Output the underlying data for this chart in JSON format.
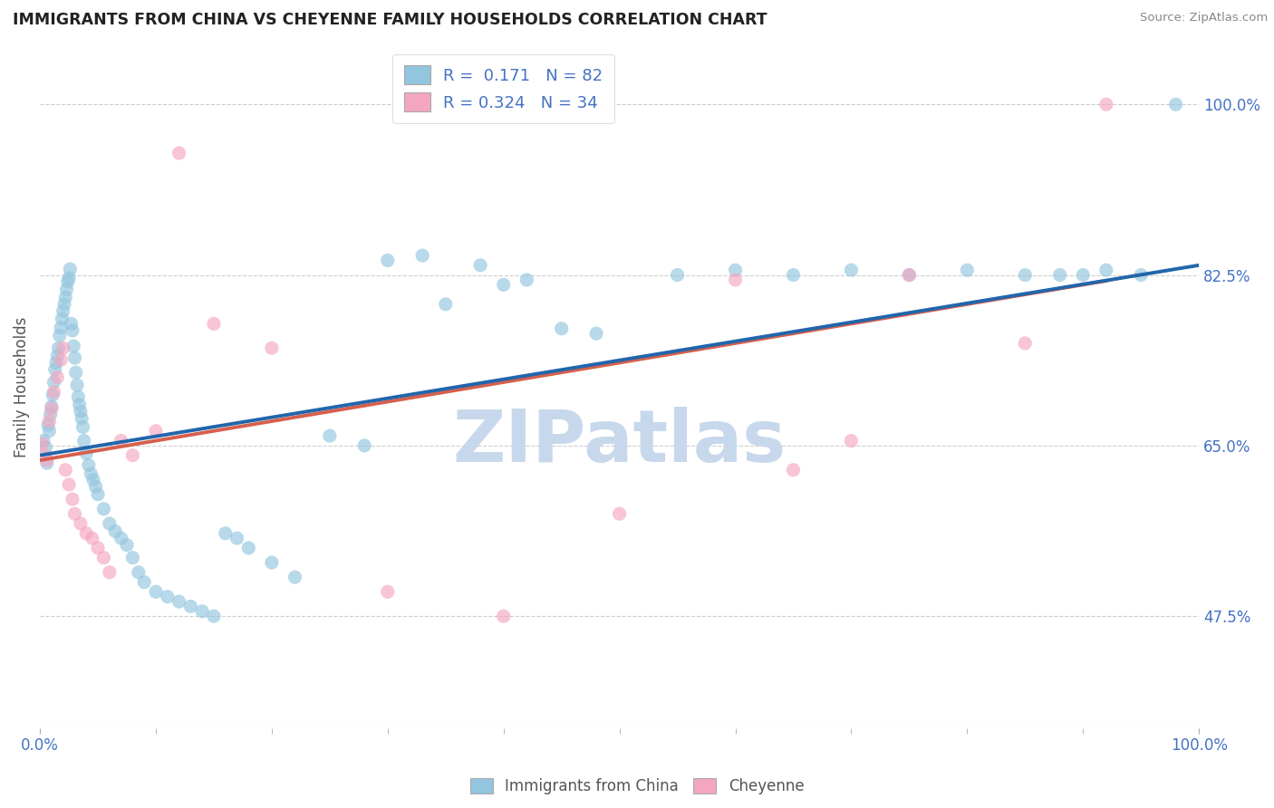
{
  "title": "IMMIGRANTS FROM CHINA VS CHEYENNE FAMILY HOUSEHOLDS CORRELATION CHART",
  "source": "Source: ZipAtlas.com",
  "ylabel": "Family Households",
  "y_tick_labels": [
    "47.5%",
    "65.0%",
    "82.5%",
    "100.0%"
  ],
  "y_tick_values": [
    47.5,
    65.0,
    82.5,
    100.0
  ],
  "xlim": [
    0.0,
    100.0
  ],
  "ylim": [
    36.0,
    106.0
  ],
  "legend_r_n": [
    {
      "R": "0.171",
      "N": "82"
    },
    {
      "R": "0.324",
      "N": "34"
    }
  ],
  "blue_color": "#92C5DE",
  "pink_color": "#F4A6C0",
  "blue_line_color": "#2166AC",
  "pink_line_color": "#D6604D",
  "title_color": "#222222",
  "axis_label_color": "#555555",
  "tick_color": "#4472C4",
  "grid_color": "#cccccc",
  "watermark_color": "#c8d8ec",
  "background_color": "#ffffff",
  "blue_R": 0.171,
  "pink_R": 0.324,
  "blue_scatter_x": [
    0.3,
    0.5,
    0.6,
    0.7,
    0.8,
    0.9,
    1.0,
    1.1,
    1.2,
    1.3,
    1.4,
    1.5,
    1.6,
    1.7,
    1.8,
    1.9,
    2.0,
    2.1,
    2.2,
    2.3,
    2.4,
    2.5,
    2.6,
    2.7,
    2.8,
    2.9,
    3.0,
    3.1,
    3.2,
    3.3,
    3.4,
    3.5,
    3.6,
    3.7,
    3.8,
    4.0,
    4.2,
    4.4,
    4.6,
    4.8,
    5.0,
    5.5,
    6.0,
    6.5,
    7.0,
    7.5,
    8.0,
    8.5,
    9.0,
    10.0,
    11.0,
    12.0,
    13.0,
    14.0,
    15.0,
    16.0,
    17.0,
    18.0,
    20.0,
    22.0,
    25.0,
    28.0,
    30.0,
    33.0,
    35.0,
    38.0,
    40.0,
    42.0,
    45.0,
    48.0,
    55.0,
    60.0,
    65.0,
    70.0,
    75.0,
    80.0,
    85.0,
    88.0,
    90.0,
    92.0,
    95.0,
    98.0
  ],
  "blue_scatter_y": [
    65.5,
    64.8,
    63.2,
    67.1,
    66.5,
    68.2,
    69.0,
    70.2,
    71.5,
    72.8,
    73.5,
    74.2,
    75.0,
    76.3,
    77.1,
    78.0,
    78.8,
    79.5,
    80.2,
    81.0,
    81.8,
    82.2,
    83.1,
    77.5,
    76.8,
    75.2,
    74.0,
    72.5,
    71.2,
    70.0,
    69.2,
    68.5,
    67.8,
    66.9,
    65.5,
    64.2,
    63.0,
    62.1,
    61.5,
    60.8,
    60.0,
    58.5,
    57.0,
    56.2,
    55.5,
    54.8,
    53.5,
    52.0,
    51.0,
    50.0,
    49.5,
    49.0,
    48.5,
    48.0,
    47.5,
    56.0,
    55.5,
    54.5,
    53.0,
    51.5,
    66.0,
    65.0,
    84.0,
    84.5,
    79.5,
    83.5,
    81.5,
    82.0,
    77.0,
    76.5,
    82.5,
    83.0,
    82.5,
    83.0,
    82.5,
    83.0,
    82.5,
    82.5,
    82.5,
    83.0,
    82.5,
    100.0
  ],
  "pink_scatter_x": [
    0.2,
    0.4,
    0.6,
    0.8,
    1.0,
    1.2,
    1.5,
    1.8,
    2.0,
    2.2,
    2.5,
    2.8,
    3.0,
    3.5,
    4.0,
    4.5,
    5.0,
    5.5,
    6.0,
    7.0,
    8.0,
    10.0,
    12.0,
    15.0,
    20.0,
    30.0,
    40.0,
    50.0,
    60.0,
    65.0,
    70.0,
    75.0,
    85.0,
    92.0
  ],
  "pink_scatter_y": [
    65.2,
    64.0,
    63.5,
    67.5,
    68.8,
    70.5,
    72.0,
    73.8,
    75.0,
    62.5,
    61.0,
    59.5,
    58.0,
    57.0,
    56.0,
    55.5,
    54.5,
    53.5,
    52.0,
    65.5,
    64.0,
    66.5,
    95.0,
    77.5,
    75.0,
    50.0,
    47.5,
    58.0,
    82.0,
    62.5,
    65.5,
    82.5,
    75.5,
    100.0
  ]
}
